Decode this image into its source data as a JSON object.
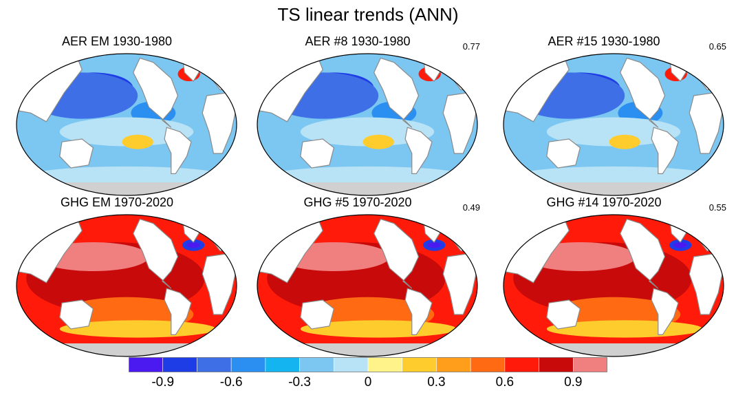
{
  "title": "TS linear trends (ANN)",
  "panels": [
    {
      "title": "AER EM 1930-1980",
      "corr": "",
      "mode": "aer"
    },
    {
      "title": "AER #8 1930-1980",
      "corr": "0.77",
      "mode": "aer"
    },
    {
      "title": "AER #15 1930-1980",
      "corr": "0.65",
      "mode": "aer"
    },
    {
      "title": "GHG EM 1970-2020",
      "corr": "",
      "mode": "ghg"
    },
    {
      "title": "GHG #5 1970-2020",
      "corr": "0.49",
      "mode": "ghg"
    },
    {
      "title": "GHG #14 1970-2020",
      "corr": "0.55",
      "mode": "ghg"
    }
  ],
  "chart_data": {
    "type": "heatmap",
    "title": "TS linear trends (ANN)",
    "colorbar": {
      "levels": [
        -1.05,
        -0.9,
        -0.75,
        -0.6,
        -0.45,
        -0.3,
        -0.15,
        0,
        0.15,
        0.3,
        0.45,
        0.6,
        0.75,
        0.9,
        1.05
      ],
      "colors": [
        "#4B1AF0",
        "#1E3DE6",
        "#3F6FE6",
        "#2A8FF0",
        "#14B4F0",
        "#7CC6F2",
        "#B8E2F5",
        "#FFF38A",
        "#FFCC2E",
        "#FF9E1A",
        "#FF6A12",
        "#FF1A0A",
        "#C80A0A",
        "#F08080"
      ],
      "tick_labels": [
        "-0.9",
        "-0.6",
        "-0.3",
        "0",
        "0.3",
        "0.6",
        "0.9"
      ],
      "tick_values": [
        -0.9,
        -0.6,
        -0.3,
        0,
        0.3,
        0.6,
        0.9
      ]
    }
  }
}
